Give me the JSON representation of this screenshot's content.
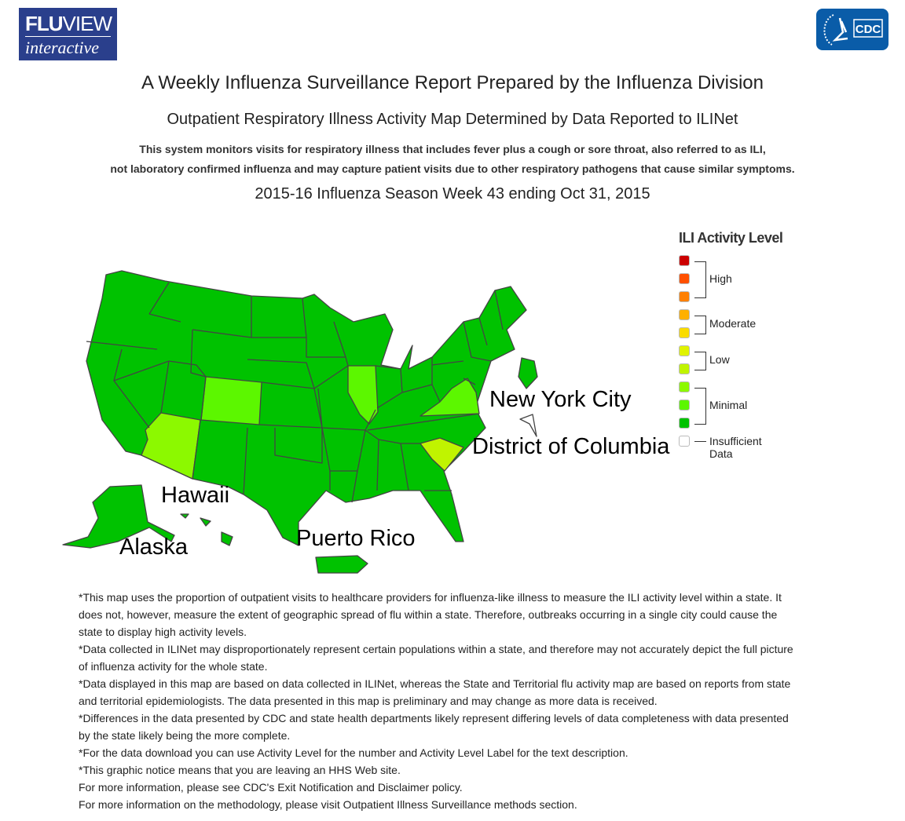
{
  "header": {
    "logo_line1_bold": "FLU",
    "logo_line1": "VIEW",
    "logo_line2": "interactive",
    "cdc_logo": "CDC"
  },
  "titles": {
    "main": "A Weekly Influenza Surveillance Report Prepared by the Influenza Division",
    "sub": "Outpatient Respiratory Illness Activity Map Determined by Data Reported to ILINet",
    "desc1": "This system monitors visits for respiratory illness that includes fever plus a cough or sore throat, also referred to as ILI,",
    "desc2": "not laboratory confirmed influenza and may capture patient visits due to other respiratory pathogens that cause similar symptoms.",
    "season": "2015-16 Influenza Season Week 43 ending Oct 31, 2015"
  },
  "map": {
    "labels": {
      "nyc": "New York City",
      "dc": "District of Columbia",
      "hawaii": "Hawaii",
      "alaska": "Alaska",
      "pr": "Puerto Rico"
    },
    "state_levels": {
      "default": "Minimal (level 1)",
      "Colorado": "Minimal (level 2)",
      "Illinois": "Minimal (level 2)",
      "Virginia": "Minimal (level 2)",
      "Arizona": "Minimal (level 3)",
      "South Carolina": "Low (level 4)",
      "District of Columbia": "Insufficient Data"
    }
  },
  "legend": {
    "title": "ILI Activity Level",
    "groups": [
      "High",
      "Moderate",
      "Low",
      "Minimal",
      "Insufficient Data"
    ],
    "colors": [
      "#cc0000",
      "#ff5000",
      "#ff8000",
      "#ffb000",
      "#fadc00",
      "#e0f300",
      "#c0f400",
      "#8cf900",
      "#5cf700",
      "#00c200",
      "#ffffff"
    ]
  },
  "notes": [
    "*This map uses the proportion of outpatient visits to healthcare providers for influenza-like illness to measure the ILI activity level within a state. It does not, however, measure the extent of geographic spread of flu within a state. Therefore, outbreaks occurring in a single city could cause the state to display high activity levels.",
    "*Data collected in ILINet may disproportionately represent certain populations within a state, and therefore may not accurately depict the full picture of influenza activity for the whole state.",
    "*Data displayed in this map are based on data collected in ILINet, whereas the State and Territorial flu activity map are based on reports from state and territorial epidemiologists. The data presented in this map is preliminary and may change as more data is received.",
    "*Differences in the data presented by CDC and state health departments likely represent differing levels of data completeness with data presented by the state likely being the more complete.",
    "*For the data download you can use Activity Level for the number and Activity Level Label for the text description.",
    "*This graphic notice means that you are leaving an HHS Web site.",
    "For more information, please see CDC's Exit Notification and Disclaimer policy.",
    "For more information on the methodology, please visit Outpatient Illness Surveillance methods section."
  ]
}
